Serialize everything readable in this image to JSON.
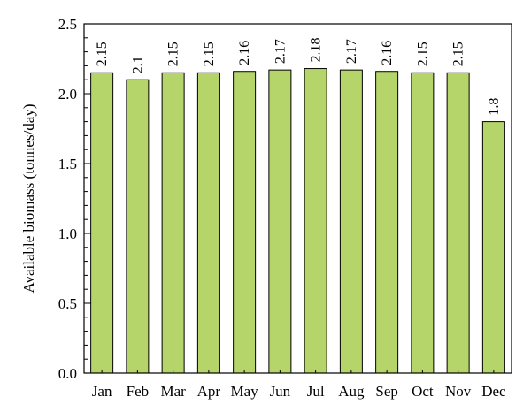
{
  "chart_data": {
    "type": "bar",
    "categories": [
      "Jan",
      "Feb",
      "Mar",
      "Apr",
      "May",
      "Jun",
      "Jul",
      "Aug",
      "Sep",
      "Oct",
      "Nov",
      "Dec"
    ],
    "values": [
      2.15,
      2.1,
      2.15,
      2.15,
      2.16,
      2.17,
      2.18,
      2.17,
      2.16,
      2.15,
      2.15,
      1.8
    ],
    "data_labels": [
      "2.15",
      "2.1",
      "2.15",
      "2.15",
      "2.16",
      "2.17",
      "2.18",
      "2.17",
      "2.16",
      "2.15",
      "2.15",
      "1.8"
    ],
    "title": "",
    "xlabel": "",
    "ylabel": "Available biomass (tonnes/day)",
    "ylim": [
      0,
      2.5
    ],
    "yticks": [
      "0.0",
      "0.5",
      "1.0",
      "1.5",
      "2.0",
      "2.5"
    ],
    "grid": false,
    "legend": "none",
    "colors": {
      "bar_fill": "#b5d56a",
      "bar_stroke": "#000000",
      "axis": "#000000"
    }
  }
}
